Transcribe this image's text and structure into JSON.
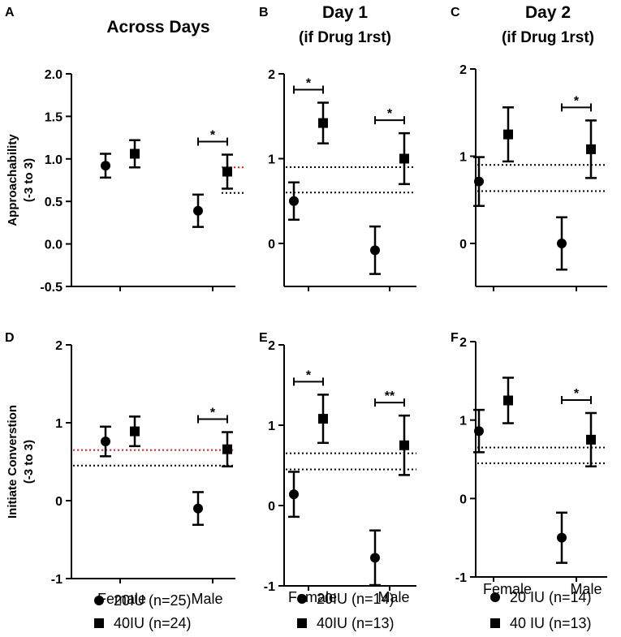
{
  "panels": [
    {
      "id": "A",
      "letter": "A",
      "title_lines": [
        "Across Days"
      ],
      "ylabel_lines": [
        "Approachability",
        "(-3 to 3)"
      ],
      "yticks": [
        "2.0",
        "1.5",
        "1.0",
        "0.5",
        "0.0",
        "-0.5"
      ],
      "xticks": [],
      "legend": []
    },
    {
      "id": "B",
      "letter": "B",
      "title_lines": [
        "Day 1",
        "(if Drug 1rst)"
      ],
      "ylabel_lines": [],
      "yticks": [
        "2",
        "1",
        "0"
      ],
      "xticks": [],
      "legend": []
    },
    {
      "id": "C",
      "letter": "C",
      "title_lines": [
        "Day 2",
        "(if Drug 1rst)"
      ],
      "ylabel_lines": [],
      "yticks": [
        "2",
        "1",
        "0"
      ],
      "xticks": [],
      "legend": []
    },
    {
      "id": "D",
      "letter": "D",
      "title_lines": [],
      "ylabel_lines": [
        "Initiate Converstion",
        "(-3 to 3)"
      ],
      "yticks": [
        "2",
        "1",
        "0",
        "-1"
      ],
      "xticks": [
        "Female",
        "Male"
      ],
      "legend": [
        "20IU (n=25)",
        "40IU (n=24)"
      ]
    },
    {
      "id": "E",
      "letter": "E",
      "title_lines": [],
      "ylabel_lines": [],
      "yticks": [
        "2",
        "1",
        "0",
        "-1"
      ],
      "xticks": [
        "Female",
        "Male"
      ],
      "legend": [
        "20IU (n=14)",
        "40IU (n=13)"
      ]
    },
    {
      "id": "F",
      "letter": "F",
      "title_lines": [],
      "ylabel_lines": [],
      "yticks": [
        "2",
        "1",
        "0",
        "-1"
      ],
      "xticks": [
        "Female",
        "Male"
      ],
      "legend": [
        "20 IU (n=14)",
        "40 IU (n=13)"
      ]
    }
  ],
  "chart_data": [
    {
      "panel": "A",
      "type": "scatter",
      "title": "Across Days",
      "ylabel": "Approachability (-3 to 3)",
      "ylim": [
        -0.5,
        2.0
      ],
      "categories": [
        "Female",
        "Male"
      ],
      "series": [
        {
          "name": "20IU (n=25)",
          "marker": "circle",
          "values": [
            0.92,
            0.39
          ],
          "errors": [
            0.14,
            0.19
          ]
        },
        {
          "name": "40IU (n=24)",
          "marker": "square",
          "values": [
            1.06,
            0.85
          ],
          "errors": [
            0.16,
            0.2
          ]
        }
      ],
      "reference_lines": [
        {
          "y": 0.9,
          "color": "#e8191c"
        },
        {
          "y": 0.6,
          "color": "#000000"
        }
      ],
      "significance": [
        {
          "category": "Male",
          "label": "*"
        }
      ]
    },
    {
      "panel": "B",
      "type": "scatter",
      "title": "Day 1 (if Drug 1rst)",
      "ylabel": "Approachability (-3 to 3)",
      "ylim": [
        -0.5,
        2.0
      ],
      "categories": [
        "Female",
        "Male"
      ],
      "series": [
        {
          "name": "20IU (n=14)",
          "marker": "circle",
          "values": [
            0.5,
            -0.08
          ],
          "errors": [
            0.22,
            0.28
          ]
        },
        {
          "name": "40IU (n=13)",
          "marker": "square",
          "values": [
            1.42,
            1.0
          ],
          "errors": [
            0.24,
            0.3
          ]
        }
      ],
      "reference_lines": [
        {
          "y": 0.9,
          "color": "#000000"
        },
        {
          "y": 0.6,
          "color": "#000000"
        }
      ],
      "significance": [
        {
          "category": "Female",
          "label": "*"
        },
        {
          "category": "Male",
          "label": "*"
        }
      ]
    },
    {
      "panel": "C",
      "type": "scatter",
      "title": "Day 2 (if Drug 1rst)",
      "ylabel": "Approachability (-3 to 3)",
      "ylim": [
        -0.5,
        2.0
      ],
      "categories": [
        "Female",
        "Male"
      ],
      "series": [
        {
          "name": "20 IU (n=14)",
          "marker": "circle",
          "values": [
            0.71,
            0.0
          ],
          "errors": [
            0.28,
            0.3
          ]
        },
        {
          "name": "40 IU (n=13)",
          "marker": "square",
          "values": [
            1.25,
            1.08
          ],
          "errors": [
            0.31,
            0.33
          ]
        }
      ],
      "reference_lines": [
        {
          "y": 0.9,
          "color": "#000000"
        },
        {
          "y": 0.6,
          "color": "#000000"
        }
      ],
      "significance": [
        {
          "category": "Male",
          "label": "*"
        }
      ]
    },
    {
      "panel": "D",
      "type": "scatter",
      "title": "",
      "ylabel": "Initiate Converstion (-3 to 3)",
      "ylim": [
        -1,
        2
      ],
      "categories": [
        "Female",
        "Male"
      ],
      "series": [
        {
          "name": "20IU (n=25)",
          "marker": "circle",
          "values": [
            0.76,
            -0.1
          ],
          "errors": [
            0.19,
            0.21
          ]
        },
        {
          "name": "40IU (n=24)",
          "marker": "square",
          "values": [
            0.89,
            0.66
          ],
          "errors": [
            0.19,
            0.22
          ]
        }
      ],
      "reference_lines": [
        {
          "y": 0.65,
          "color": "#e8191c"
        },
        {
          "y": 0.45,
          "color": "#000000"
        }
      ],
      "significance": [
        {
          "category": "Male",
          "label": "*"
        }
      ]
    },
    {
      "panel": "E",
      "type": "scatter",
      "title": "",
      "ylabel": "Initiate Converstion (-3 to 3)",
      "ylim": [
        -1,
        2
      ],
      "categories": [
        "Female",
        "Male"
      ],
      "series": [
        {
          "name": "20IU (n=14)",
          "marker": "circle",
          "values": [
            0.14,
            -0.65
          ],
          "errors": [
            0.28,
            0.34
          ]
        },
        {
          "name": "40IU (n=13)",
          "marker": "square",
          "values": [
            1.08,
            0.75
          ],
          "errors": [
            0.3,
            0.37
          ]
        }
      ],
      "reference_lines": [
        {
          "y": 0.65,
          "color": "#000000"
        },
        {
          "y": 0.45,
          "color": "#000000"
        }
      ],
      "significance": [
        {
          "category": "Female",
          "label": "*"
        },
        {
          "category": "Male",
          "label": "**"
        }
      ]
    },
    {
      "panel": "F",
      "type": "scatter",
      "title": "",
      "ylabel": "Initiate Converstion (-3 to 3)",
      "ylim": [
        -1,
        2
      ],
      "categories": [
        "Female",
        "Male"
      ],
      "series": [
        {
          "name": "20 IU (n=14)",
          "marker": "circle",
          "values": [
            0.86,
            -0.5
          ],
          "errors": [
            0.27,
            0.32
          ]
        },
        {
          "name": "40 IU (n=13)",
          "marker": "square",
          "values": [
            1.25,
            0.75
          ],
          "errors": [
            0.29,
            0.34
          ]
        }
      ],
      "reference_lines": [
        {
          "y": 0.65,
          "color": "#000000"
        },
        {
          "y": 0.45,
          "color": "#000000"
        }
      ],
      "significance": [
        {
          "category": "Male",
          "label": "*"
        }
      ]
    }
  ]
}
